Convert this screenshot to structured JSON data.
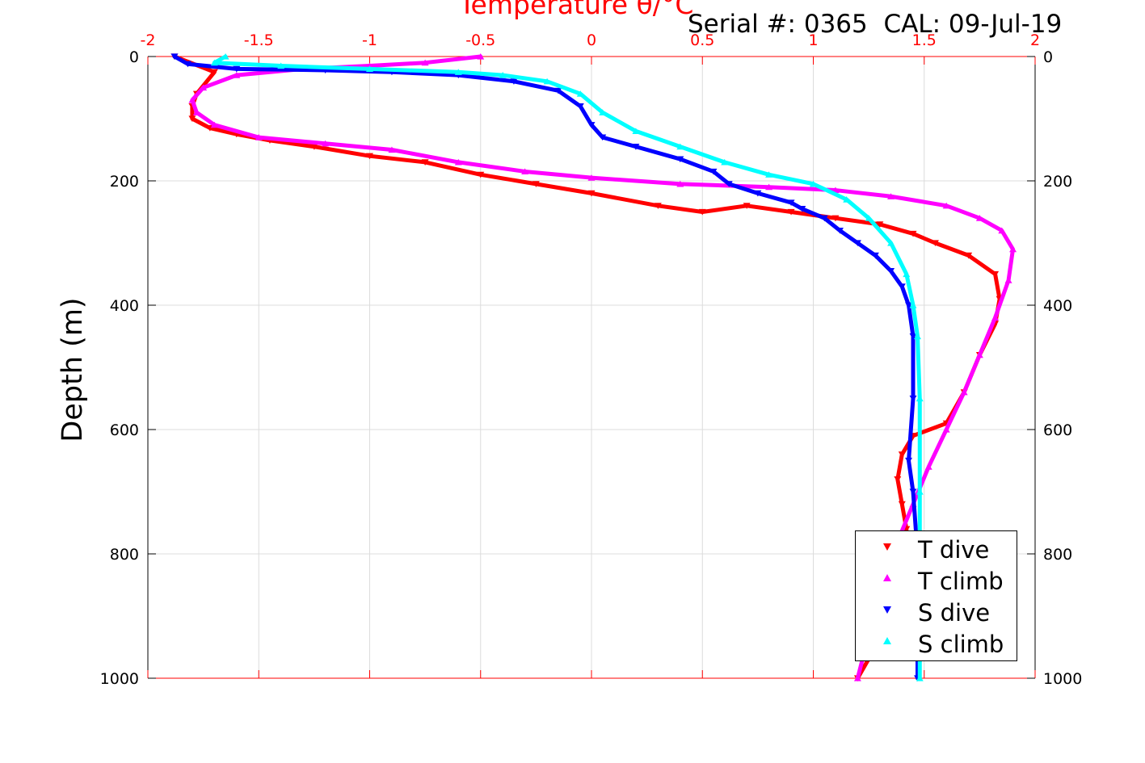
{
  "chart_data": {
    "type": "scatter",
    "title": "Temperature θ/°C",
    "annotation": "Serial #: 0365  CAL: 09-Jul-19",
    "xlabel": "Temperature θ/°C",
    "ylabel": "Depth (m)",
    "xlim": [
      -2,
      2
    ],
    "ylim": [
      1000,
      0
    ],
    "y_reversed": true,
    "x_axis_position": "top",
    "x_ticks": [
      "-2",
      "-1.5",
      "-1",
      "-0.5",
      "0",
      "0.5",
      "1",
      "1.5",
      "2"
    ],
    "x_tick_values": [
      -2,
      -1.5,
      -1,
      -0.5,
      0,
      0.5,
      1,
      1.5,
      2
    ],
    "y_ticks": [
      "0",
      "200",
      "400",
      "600",
      "800",
      "1000"
    ],
    "y_tick_values": [
      0,
      200,
      400,
      600,
      800,
      1000
    ],
    "grid": true,
    "legend_position": "bottom-right",
    "colors": {
      "axis_top": "#ff0000",
      "axis_left": "#000000",
      "grid": "#dcdcdc"
    },
    "series": [
      {
        "name": "T dive",
        "color": "#ff0000",
        "marker": "triangle-down",
        "x": [
          -1.88,
          -1.7,
          -1.78,
          -1.8,
          -1.8,
          -1.72,
          -1.6,
          -1.45,
          -1.25,
          -1.0,
          -0.75,
          -0.5,
          -0.25,
          0.0,
          0.3,
          0.5,
          0.7,
          0.9,
          1.1,
          1.3,
          1.45,
          1.55,
          1.7,
          1.82,
          1.84,
          1.82,
          1.75,
          1.68,
          1.6,
          1.45,
          1.4,
          1.38,
          1.4,
          1.42,
          1.42,
          1.36,
          1.2
        ],
        "y": [
          0,
          25,
          60,
          80,
          100,
          115,
          125,
          135,
          145,
          160,
          170,
          190,
          205,
          220,
          240,
          250,
          240,
          250,
          260,
          270,
          285,
          300,
          320,
          350,
          390,
          430,
          480,
          540,
          590,
          610,
          640,
          680,
          720,
          760,
          800,
          900,
          1000
        ]
      },
      {
        "name": "T climb",
        "color": "#ff00ff",
        "marker": "triangle-up",
        "x": [
          -0.5,
          -0.75,
          -1.0,
          -1.3,
          -1.6,
          -1.75,
          -1.8,
          -1.78,
          -1.7,
          -1.5,
          -1.2,
          -0.9,
          -0.6,
          -0.3,
          0.0,
          0.4,
          0.8,
          1.1,
          1.35,
          1.6,
          1.75,
          1.85,
          1.9,
          1.88,
          1.82,
          1.75,
          1.68,
          1.6,
          1.52,
          1.45,
          1.38,
          1.3,
          1.2
        ],
        "y": [
          0,
          10,
          15,
          20,
          30,
          50,
          70,
          90,
          110,
          130,
          140,
          150,
          170,
          185,
          195,
          205,
          210,
          215,
          225,
          240,
          260,
          280,
          310,
          360,
          420,
          480,
          540,
          600,
          660,
          720,
          780,
          860,
          1000
        ]
      },
      {
        "name": "S dive",
        "color": "#0000ff",
        "marker": "triangle-down",
        "x": [
          -1.88,
          -1.82,
          -1.6,
          -1.2,
          -0.9,
          -0.6,
          -0.35,
          -0.15,
          -0.05,
          0.0,
          0.05,
          0.2,
          0.4,
          0.55,
          0.62,
          0.75,
          0.9,
          0.95,
          1.05,
          1.12,
          1.2,
          1.28,
          1.35,
          1.4,
          1.43,
          1.45,
          1.45,
          1.43,
          1.45,
          1.47,
          1.47
        ],
        "y": [
          0,
          12,
          20,
          22,
          25,
          30,
          40,
          55,
          80,
          110,
          130,
          145,
          165,
          185,
          205,
          220,
          235,
          245,
          260,
          280,
          300,
          320,
          345,
          370,
          400,
          450,
          550,
          650,
          700,
          800,
          1000
        ]
      },
      {
        "name": "S climb",
        "color": "#00ffff",
        "marker": "triangle-up",
        "x": [
          -1.65,
          -1.7,
          -1.4,
          -1.0,
          -0.6,
          -0.4,
          -0.2,
          -0.05,
          0.05,
          0.2,
          0.4,
          0.6,
          0.8,
          1.0,
          1.15,
          1.25,
          1.35,
          1.42,
          1.45,
          1.47,
          1.48,
          1.48,
          1.48,
          1.48
        ],
        "y": [
          0,
          10,
          15,
          20,
          25,
          30,
          40,
          60,
          90,
          120,
          145,
          170,
          190,
          205,
          230,
          260,
          300,
          350,
          400,
          450,
          550,
          700,
          850,
          1000
        ]
      }
    ]
  }
}
